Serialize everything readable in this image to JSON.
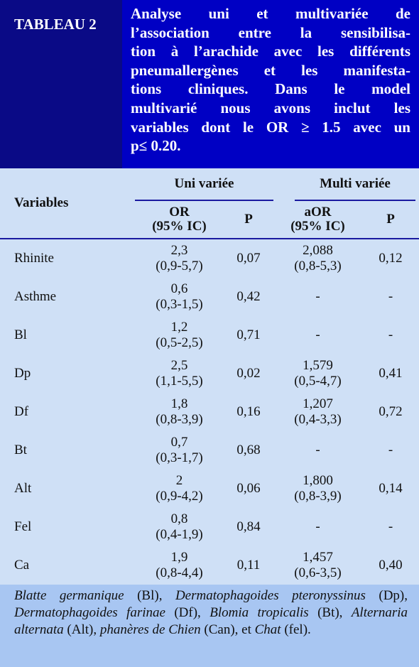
{
  "header": {
    "label": "TABLEAU 2",
    "title_lines": [
      "Analyse uni et multivariée de",
      "l’association entre la sensibilisa-",
      "tion à l’arachide avec les différents",
      "pneumallergènes et les manifesta-",
      "tions cliniques. Dans le model",
      "multivarié nous avons inclut les",
      "variables dont le OR ≥ 1.5 avec un",
      "p≤ 0.20."
    ]
  },
  "table": {
    "variables_header": "Variables",
    "groups": [
      "Uni variée",
      "Multi variée"
    ],
    "subheaders": [
      [
        "OR",
        "(95% IC)"
      ],
      [
        "P"
      ],
      [
        "aOR",
        "(95% IC)"
      ],
      [
        "P"
      ]
    ],
    "rows": [
      [
        "Rhinite",
        [
          "2,3",
          "(0,9-5,7)"
        ],
        "0,07",
        [
          "2,088",
          "(0,8-5,3)"
        ],
        "0,12"
      ],
      [
        "Asthme",
        [
          "0,6",
          "(0,3-1,5)"
        ],
        "0,42",
        [
          "-"
        ],
        "-"
      ],
      [
        "Bl",
        [
          "1,2",
          "(0,5-2,5)"
        ],
        "0,71",
        [
          "-"
        ],
        "-"
      ],
      [
        "Dp",
        [
          "2,5",
          "(1,1-5,5)"
        ],
        "0,02",
        [
          "1,579",
          "(0,5-4,7)"
        ],
        "0,41"
      ],
      [
        "Df",
        [
          "1,8",
          "(0,8-3,9)"
        ],
        "0,16",
        [
          "1,207",
          "(0,4-3,3)"
        ],
        "0,72"
      ],
      [
        "Bt",
        [
          "0,7",
          "(0,3-1,7)"
        ],
        "0,68",
        [
          "-"
        ],
        "-"
      ],
      [
        "Alt",
        [
          "2",
          "(0,9-4,2)"
        ],
        "0,06",
        [
          "1,800",
          "(0,8-3,9)"
        ],
        "0,14"
      ],
      [
        "Fel",
        [
          "0,8",
          "(0,4-1,9)"
        ],
        "0,84",
        [
          "-"
        ],
        "-"
      ],
      [
        "Ca",
        [
          "1,9",
          "(0,8-4,4)"
        ],
        "0,11",
        [
          "1,457",
          "(0,6-3,5)"
        ],
        "0,40"
      ]
    ]
  },
  "note": [
    {
      "text": "Blatte germanique",
      "italic": true
    },
    {
      "text": " (Bl), ",
      "italic": false
    },
    {
      "text": "Dermatophagoides pteronyssinus",
      "italic": true
    },
    {
      "text": " (Dp), ",
      "italic": false
    },
    {
      "text": "Dermatophagoides farinae",
      "italic": true
    },
    {
      "text": " (Df), ",
      "italic": false
    },
    {
      "text": "Blomia tropicalis",
      "italic": true
    },
    {
      "text": " (Bt), ",
      "italic": false
    },
    {
      "text": "Alternaria alternata",
      "italic": true
    },
    {
      "text": " (Alt), ",
      "italic": false
    },
    {
      "text": "phanères de Chien",
      "italic": true
    },
    {
      "text": " (Can), et ",
      "italic": false
    },
    {
      "text": "Chat",
      "italic": true
    },
    {
      "text": " (fel).",
      "italic": false
    }
  ]
}
